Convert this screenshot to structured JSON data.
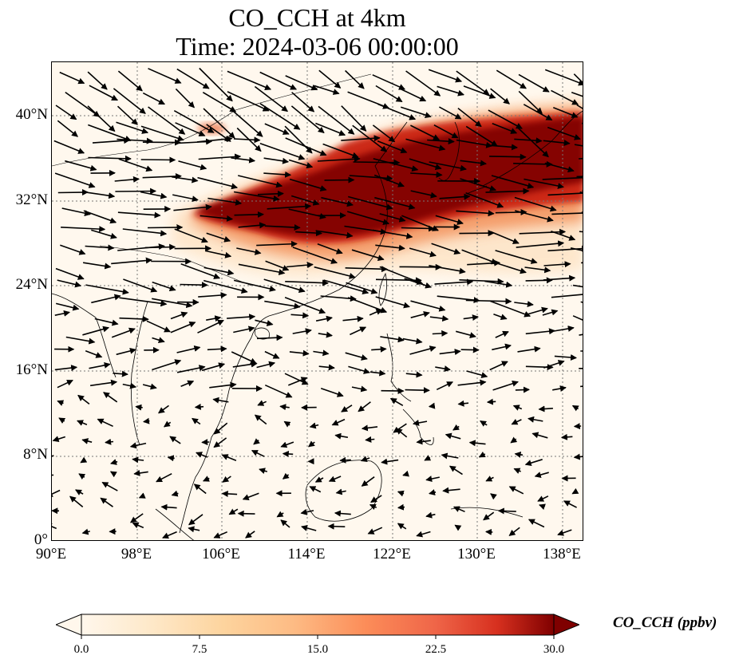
{
  "title": {
    "line1": "CO_CCH at 4km",
    "line2": "Time: 2024-03-06 00:00:00"
  },
  "map": {
    "extent_lon": [
      90,
      140
    ],
    "extent_lat": [
      0,
      45
    ],
    "lat_ticks": [
      "0°",
      "8°N",
      "16°N",
      "24°N",
      "32°N",
      "40°N"
    ],
    "lon_ticks": [
      "90°E",
      "98°E",
      "106°E",
      "114°E",
      "122°E",
      "130°E",
      "138°E"
    ],
    "gridlines": true,
    "background_color": "#fff5eb",
    "plume_color_high": "#7f0000",
    "vector_color": "#000000"
  },
  "colorbar": {
    "label": "CO_CCH (ppbv)",
    "ticks": [
      "0.0",
      "7.5",
      "15.0",
      "22.5",
      "30.0"
    ],
    "range": [
      0,
      30
    ],
    "colormap": "OrRd",
    "extend": "both"
  }
}
